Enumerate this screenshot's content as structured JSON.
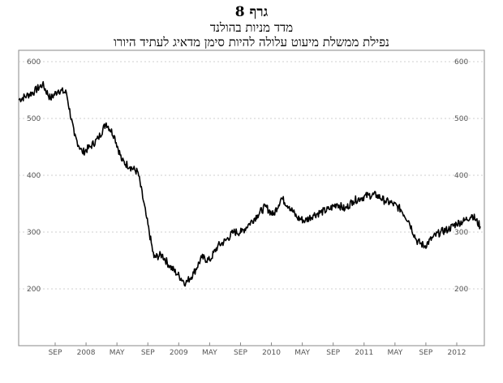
{
  "chart_data": {
    "type": "line",
    "title": "גרף 8",
    "subtitle": "מדד מניות בהולנד",
    "subtitle2": "נפילת ממשלת מיעוט עלולה להיות סימן מדאיג לעתיד היורו",
    "xlabel": "",
    "ylabel": "",
    "ylim": [
      100,
      620
    ],
    "yticks": [
      200,
      300,
      400,
      500,
      600
    ],
    "xticks": [
      "SEP",
      "2008",
      "MAY",
      "SEP",
      "2009",
      "MAY",
      "SEP",
      "2010",
      "MAY",
      "SEP",
      "2011",
      "MAY",
      "SEP",
      "2012"
    ],
    "grid": true,
    "y_axis_sides": [
      "left",
      "right"
    ],
    "series": [
      {
        "color": "#000000",
        "x": [
          "2007-06",
          "2007-07",
          "2007-08",
          "2007-09",
          "2007-10",
          "2007-11",
          "2007-12",
          "2008-01",
          "2008-02",
          "2008-03",
          "2008-04",
          "2008-05",
          "2008-06",
          "2008-07",
          "2008-08",
          "2008-09",
          "2008-10",
          "2008-11",
          "2008-12",
          "2009-01",
          "2009-02",
          "2009-03",
          "2009-04",
          "2009-05",
          "2009-06",
          "2009-07",
          "2009-08",
          "2009-09",
          "2009-10",
          "2009-11",
          "2009-12",
          "2010-01",
          "2010-02",
          "2010-03",
          "2010-04",
          "2010-05",
          "2010-06",
          "2010-07",
          "2010-08",
          "2010-09",
          "2010-10",
          "2010-11",
          "2010-12",
          "2011-01",
          "2011-02",
          "2011-03",
          "2011-04",
          "2011-05",
          "2011-06",
          "2011-07",
          "2011-08",
          "2011-09",
          "2011-10",
          "2011-11",
          "2011-12",
          "2012-01",
          "2012-02",
          "2012-03",
          "2012-04"
        ],
        "values": [
          533,
          540,
          548,
          560,
          535,
          550,
          545,
          470,
          440,
          450,
          465,
          492,
          470,
          425,
          415,
          405,
          330,
          255,
          260,
          240,
          225,
          210,
          228,
          255,
          250,
          275,
          285,
          300,
          300,
          315,
          330,
          345,
          330,
          360,
          345,
          325,
          320,
          330,
          335,
          340,
          350,
          340,
          355,
          360,
          365,
          365,
          355,
          350,
          340,
          320,
          285,
          275,
          290,
          300,
          305,
          315,
          320,
          330,
          310
        ]
      }
    ]
  }
}
